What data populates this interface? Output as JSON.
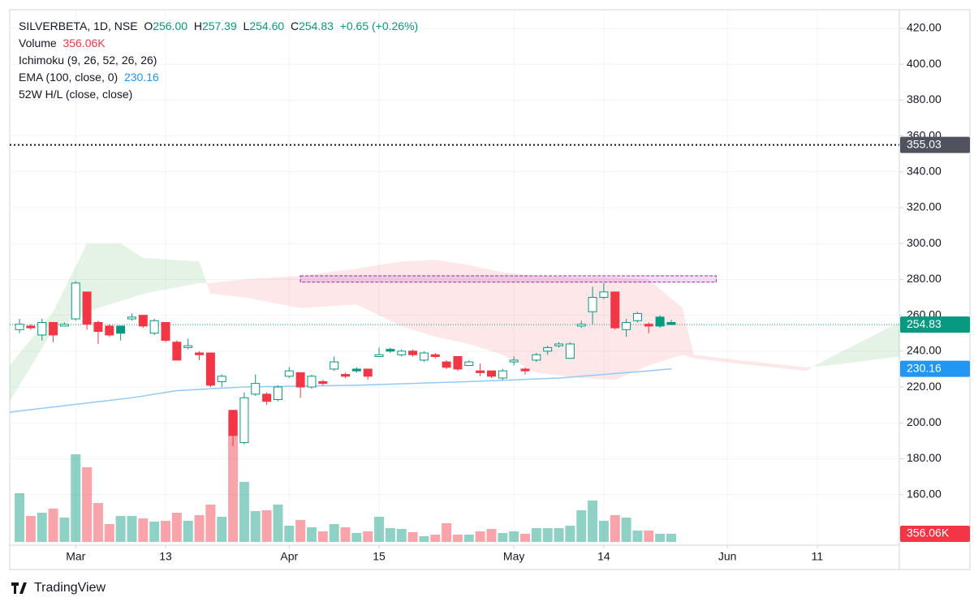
{
  "chart_data": {
    "type": "candlestick",
    "symbol": "SILVERBETA, 1D, NSE",
    "ohlc_legend": [
      {
        "key": "O",
        "value": "256.00"
      },
      {
        "key": "H",
        "value": "257.39"
      },
      {
        "key": "L",
        "value": "254.60"
      },
      {
        "key": "C",
        "value": "254.83"
      }
    ],
    "change": "+0.65 (+0.26%)",
    "indicators": [
      {
        "name": "Volume",
        "value": "356.06K"
      },
      {
        "name": "Ichimoku (9, 26, 52, 26, 26)"
      },
      {
        "name": "EMA (100, close, 0)",
        "value": "230.16"
      },
      {
        "name": "52W H/L (close, close)"
      }
    ],
    "up_color": "#089981",
    "down_color": "#f23645",
    "open": [
      252,
      254,
      249,
      256,
      254,
      258,
      273,
      256,
      254,
      254,
      258,
      260,
      250,
      256,
      245,
      242,
      239,
      239,
      223,
      207,
      189,
      216,
      216,
      213,
      226,
      228,
      220,
      223,
      230,
      227,
      230,
      230,
      237,
      241,
      238,
      240,
      235,
      238,
      234,
      237,
      232,
      229,
      229,
      225,
      234,
      230,
      235,
      240,
      243,
      236,
      254,
      262,
      270,
      273,
      252,
      257,
      255,
      259,
      256
    ],
    "high": [
      258,
      255,
      258,
      256,
      256,
      279,
      273,
      257,
      255,
      254,
      261,
      260,
      258,
      256,
      246,
      247,
      240,
      239,
      227,
      207,
      217,
      227,
      217,
      221,
      231,
      228,
      227,
      224,
      237,
      228,
      231,
      230,
      242,
      242,
      241,
      241,
      240,
      239,
      235,
      237,
      235,
      233,
      229,
      230,
      237,
      231,
      239,
      243,
      245,
      245,
      257,
      276,
      278,
      273,
      258,
      262,
      256,
      260,
      257.39
    ],
    "low": [
      250,
      252,
      246,
      245,
      254,
      257,
      252,
      244,
      248,
      246,
      257,
      253,
      249,
      245,
      235,
      241,
      235,
      220,
      220,
      187,
      188,
      215,
      210,
      212,
      225,
      214,
      219,
      221,
      229,
      225,
      228,
      224,
      237,
      239,
      237,
      237,
      234,
      236,
      230,
      229,
      232,
      226,
      225,
      224,
      232,
      227,
      234,
      238,
      242,
      236,
      253,
      255,
      269,
      252,
      248,
      256,
      250,
      253,
      254.6
    ],
    "close": [
      255,
      253,
      256,
      249,
      255,
      278,
      255,
      251,
      249,
      250,
      259,
      254,
      257,
      246,
      235,
      243,
      238,
      221,
      226,
      193,
      214,
      222,
      212,
      220,
      229,
      220,
      226,
      222,
      234,
      226,
      229,
      226,
      238,
      240,
      240,
      238,
      239,
      237,
      231,
      230,
      234,
      228,
      226,
      229,
      235,
      229,
      238,
      242,
      244,
      244,
      255,
      270,
      273,
      253,
      256,
      261,
      254,
      254,
      254.83
    ],
    "volume": [
      2136,
      1139,
      1282,
      1460,
      1068,
      3845,
      3275,
      1709,
      783,
      1139,
      1139,
      1032,
      890,
      926,
      1282,
      926,
      1175,
      1638,
      1104,
      5696,
      2634,
      1353,
      1388,
      1638,
      712,
      961,
      641,
      463,
      783,
      641,
      392,
      463,
      1104,
      605,
      570,
      427,
      249,
      320,
      819,
      320,
      320,
      463,
      570,
      392,
      463,
      356,
      605,
      605,
      605,
      712,
      1388,
      1816,
      926,
      1175,
      1068,
      498,
      498,
      356,
      356.06
    ],
    "volume_tag_label": "356.06K",
    "ylim": [
      131.8,
      430.4
    ],
    "yticks": [
      {
        "value": 160,
        "label": "160.00"
      },
      {
        "value": 180,
        "label": "180.00"
      },
      {
        "value": 200,
        "label": "200.00"
      },
      {
        "value": 220,
        "label": "220.00"
      },
      {
        "value": 240,
        "label": "240.00"
      },
      {
        "value": 260,
        "label": "260.00"
      },
      {
        "value": 280,
        "label": "280.00"
      },
      {
        "value": 300,
        "label": "300.00"
      },
      {
        "value": 320,
        "label": "320.00"
      },
      {
        "value": 340,
        "label": "340.00"
      },
      {
        "value": 360,
        "label": "360.00"
      },
      {
        "value": 380,
        "label": "380.00"
      },
      {
        "value": 400,
        "label": "400.00"
      },
      {
        "value": 420,
        "label": "420.00"
      }
    ],
    "xlim": [
      -0.87,
      78.3
    ],
    "xticks": [
      {
        "value": 5,
        "label": "Mar"
      },
      {
        "value": 13,
        "label": "13"
      },
      {
        "value": 24,
        "label": "Apr"
      },
      {
        "value": 32,
        "label": "15"
      },
      {
        "value": 44,
        "label": "May"
      },
      {
        "value": 52,
        "label": "14"
      },
      {
        "value": 63,
        "label": "Jun"
      },
      {
        "value": 71,
        "label": "11"
      }
    ],
    "grid": true,
    "ema": {
      "color": "#90caf9",
      "x": [
        -0.87,
        10,
        14,
        20,
        30,
        40,
        48,
        52,
        56,
        58
      ],
      "values": [
        206,
        214,
        218,
        220,
        221,
        223,
        225,
        227,
        229,
        230.16
      ]
    },
    "cloud": {
      "up_color": "rgba(76,175,80,0.15)",
      "down_color": "rgba(242,54,69,0.12)",
      "x": [
        -0.87,
        3,
        6,
        9,
        11,
        16,
        17,
        20,
        25,
        30,
        34,
        37,
        40,
        43,
        46,
        50,
        53,
        56,
        59,
        60,
        64,
        70,
        72,
        78.3
      ],
      "span_a": [
        232,
        262,
        300,
        300,
        292,
        290,
        272,
        270,
        264,
        266,
        254,
        248,
        244,
        238,
        228,
        225,
        224,
        232,
        238,
        236,
        233,
        229,
        236,
        256
      ],
      "span_b": [
        212,
        252,
        262,
        268,
        272,
        278,
        278,
        280,
        282,
        286,
        290,
        291,
        288,
        284,
        282,
        281,
        281,
        280,
        264,
        238,
        235,
        231,
        232,
        237
      ]
    },
    "high_52w": 355.03,
    "box": {
      "x": [
        25,
        62
      ],
      "y": [
        278.5,
        282
      ],
      "color": "#9c27b0"
    },
    "brand": "TradingView"
  }
}
